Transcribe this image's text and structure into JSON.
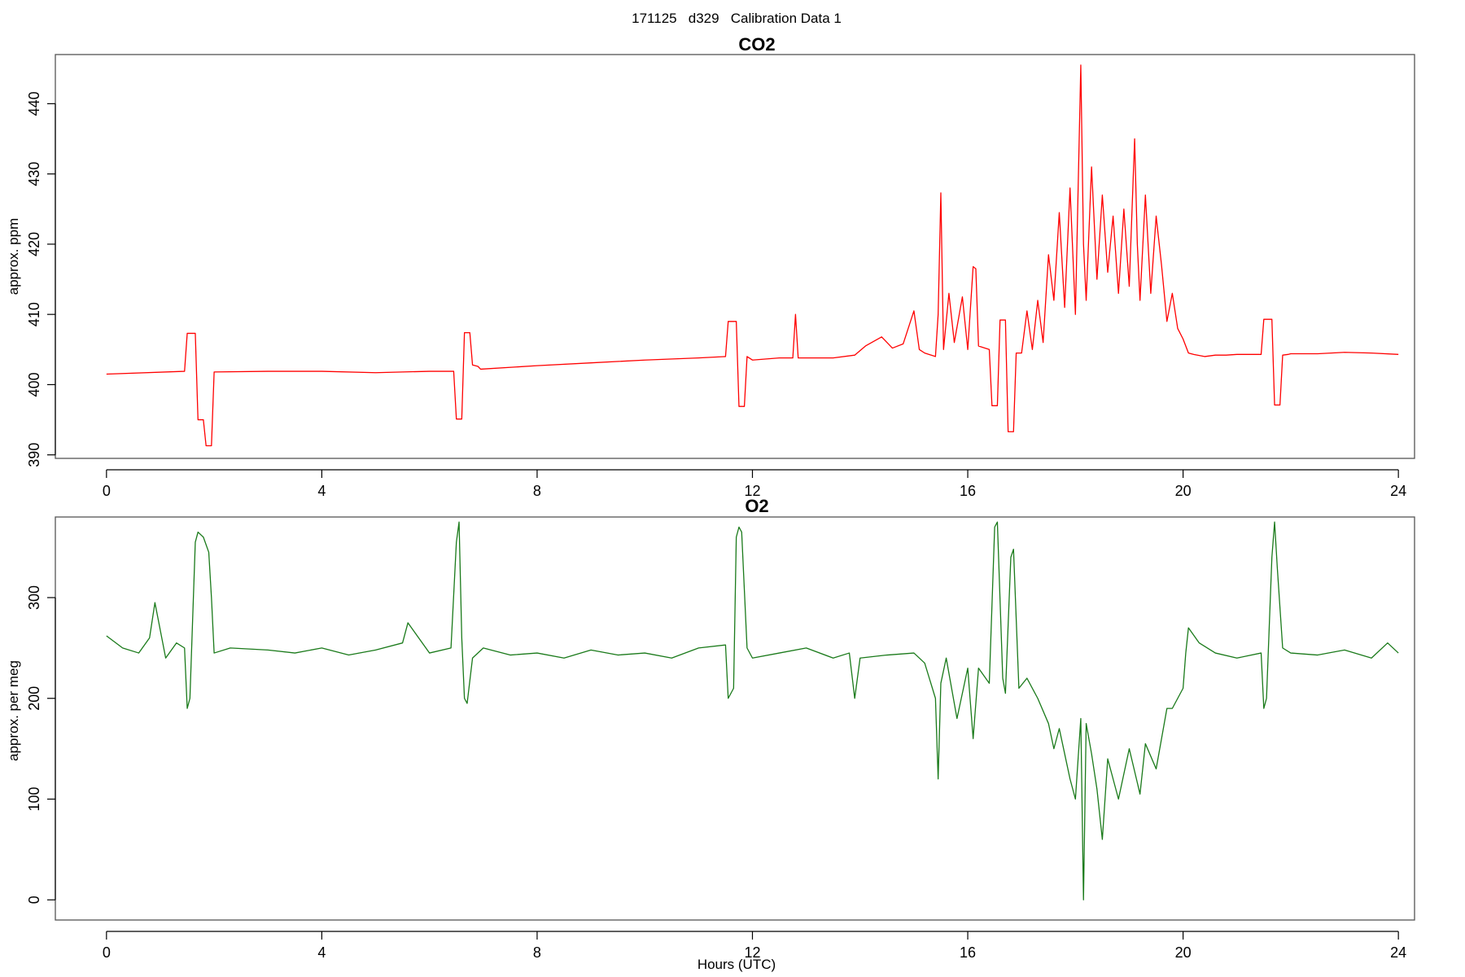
{
  "figure_title": "171125   d329   Calibration Data 1",
  "chart_data": [
    {
      "type": "line",
      "title": "CO2",
      "ylabel": "approx. ppm",
      "xlabel": "",
      "color": "#ff0000",
      "xlim": [
        -0.95,
        24.3
      ],
      "ylim": [
        389.5,
        447.0
      ],
      "x_ticks": [
        0,
        4,
        8,
        12,
        16,
        20,
        24
      ],
      "y_ticks": [
        390,
        400,
        410,
        420,
        430,
        440
      ],
      "grid": false,
      "series": [
        {
          "x": [
            0.0,
            1.45,
            1.5,
            1.65,
            1.7,
            1.8,
            1.85,
            1.95,
            2.0,
            3.0,
            4.0,
            5.0,
            6.0,
            6.45,
            6.5,
            6.6,
            6.65,
            6.75,
            6.8,
            6.9,
            6.95,
            8.0,
            9.0,
            10.0,
            11.0,
            11.5,
            11.55,
            11.7,
            11.75,
            11.85,
            11.9,
            12.0,
            12.5,
            12.75,
            12.8,
            12.85,
            13.5,
            13.9,
            14.1,
            14.4,
            14.6,
            14.8,
            15.0,
            15.1,
            15.2,
            15.4,
            15.45,
            15.5,
            15.55,
            15.65,
            15.75,
            15.9,
            16.0,
            16.1,
            16.15,
            16.2,
            16.4,
            16.45,
            16.55,
            16.6,
            16.7,
            16.75,
            16.85,
            16.9,
            17.0,
            17.1,
            17.2,
            17.3,
            17.4,
            17.5,
            17.6,
            17.7,
            17.8,
            17.9,
            18.0,
            18.1,
            18.15,
            18.2,
            18.3,
            18.4,
            18.5,
            18.6,
            18.7,
            18.8,
            18.9,
            19.0,
            19.1,
            19.15,
            19.2,
            19.3,
            19.4,
            19.5,
            19.6,
            19.7,
            19.8,
            19.9,
            20.0,
            20.1,
            20.2,
            20.4,
            20.6,
            20.8,
            21.0,
            21.2,
            21.45,
            21.5,
            21.65,
            21.7,
            21.8,
            21.85,
            21.95,
            22.0,
            22.5,
            23.0,
            23.5,
            24.0
          ],
          "y": [
            401.5,
            401.9,
            407.3,
            407.3,
            395.0,
            395.0,
            391.3,
            391.3,
            401.8,
            401.9,
            401.9,
            401.7,
            401.9,
            401.9,
            395.1,
            395.1,
            407.4,
            407.4,
            402.8,
            402.6,
            402.2,
            402.7,
            403.1,
            403.5,
            403.8,
            404.0,
            409.0,
            409.0,
            396.9,
            396.9,
            404.0,
            403.5,
            403.8,
            403.8,
            410.0,
            403.8,
            403.8,
            404.2,
            405.5,
            406.8,
            405.2,
            405.8,
            410.5,
            405.0,
            404.5,
            404.0,
            410.0,
            427.3,
            405.0,
            413.0,
            406.0,
            412.5,
            405.0,
            416.8,
            416.5,
            405.5,
            405.0,
            397.0,
            397.0,
            409.2,
            409.2,
            393.3,
            393.3,
            404.5,
            404.5,
            410.5,
            405.0,
            412.0,
            406.0,
            418.5,
            412.0,
            424.5,
            411.0,
            428.0,
            410.0,
            445.5,
            420.0,
            412.0,
            431.0,
            415.0,
            427.0,
            416.0,
            424.0,
            413.0,
            425.0,
            414.0,
            435.0,
            420.0,
            412.0,
            427.0,
            413.0,
            424.0,
            417.0,
            409.0,
            413.0,
            408.0,
            406.5,
            404.5,
            404.3,
            404.0,
            404.2,
            404.2,
            404.3,
            404.3,
            404.3,
            409.3,
            409.3,
            397.1,
            397.1,
            404.2,
            404.3,
            404.4,
            404.4,
            404.6,
            404.5,
            404.3
          ]
        }
      ]
    },
    {
      "type": "line",
      "title": "O2",
      "ylabel": "approx. per meg",
      "xlabel": "Hours (UTC)",
      "color": "#1a7a1a",
      "xlim": [
        -0.95,
        24.3
      ],
      "ylim": [
        -20,
        380
      ],
      "x_ticks": [
        0,
        4,
        8,
        12,
        16,
        20,
        24
      ],
      "y_ticks": [
        0,
        100,
        200,
        300
      ],
      "grid": false,
      "series": [
        {
          "x": [
            0.0,
            0.3,
            0.6,
            0.8,
            0.9,
            1.1,
            1.3,
            1.45,
            1.5,
            1.55,
            1.65,
            1.7,
            1.8,
            1.9,
            1.95,
            2.0,
            2.3,
            3.0,
            3.5,
            4.0,
            4.5,
            5.0,
            5.5,
            5.6,
            6.0,
            6.4,
            6.5,
            6.55,
            6.6,
            6.65,
            6.7,
            6.8,
            7.0,
            7.5,
            8.0,
            8.5,
            9.0,
            9.5,
            10.0,
            10.5,
            11.0,
            11.5,
            11.55,
            11.65,
            11.7,
            11.75,
            11.8,
            11.9,
            12.0,
            12.5,
            13.0,
            13.5,
            13.8,
            13.9,
            14.0,
            14.5,
            15.0,
            15.2,
            15.4,
            15.45,
            15.5,
            15.6,
            15.8,
            16.0,
            16.1,
            16.2,
            16.4,
            16.5,
            16.55,
            16.65,
            16.7,
            16.8,
            16.85,
            16.95,
            17.1,
            17.3,
            17.5,
            17.6,
            17.7,
            17.8,
            17.9,
            18.0,
            18.1,
            18.15,
            18.2,
            18.3,
            18.4,
            18.5,
            18.6,
            18.8,
            19.0,
            19.2,
            19.3,
            19.5,
            19.7,
            19.8,
            20.0,
            20.05,
            20.1,
            20.3,
            20.6,
            21.0,
            21.45,
            21.5,
            21.55,
            21.65,
            21.7,
            21.75,
            21.85,
            22.0,
            22.5,
            23.0,
            23.5,
            23.8,
            24.0
          ],
          "y": [
            262,
            250,
            245,
            260,
            295,
            240,
            255,
            250,
            190,
            200,
            355,
            365,
            360,
            345,
            300,
            245,
            250,
            248,
            245,
            250,
            243,
            248,
            255,
            275,
            245,
            250,
            355,
            375,
            260,
            200,
            195,
            240,
            250,
            243,
            245,
            240,
            248,
            243,
            245,
            240,
            250,
            253,
            200,
            210,
            360,
            370,
            365,
            250,
            240,
            245,
            250,
            240,
            245,
            200,
            240,
            243,
            245,
            235,
            200,
            120,
            215,
            240,
            180,
            230,
            160,
            230,
            215,
            370,
            375,
            220,
            205,
            340,
            348,
            210,
            220,
            200,
            175,
            150,
            170,
            145,
            120,
            100,
            180,
            0,
            175,
            145,
            110,
            60,
            140,
            100,
            150,
            105,
            155,
            130,
            190,
            190,
            210,
            245,
            270,
            255,
            245,
            240,
            245,
            190,
            200,
            340,
            375,
            330,
            250,
            245,
            243,
            248,
            240,
            255,
            245
          ]
        }
      ]
    }
  ]
}
